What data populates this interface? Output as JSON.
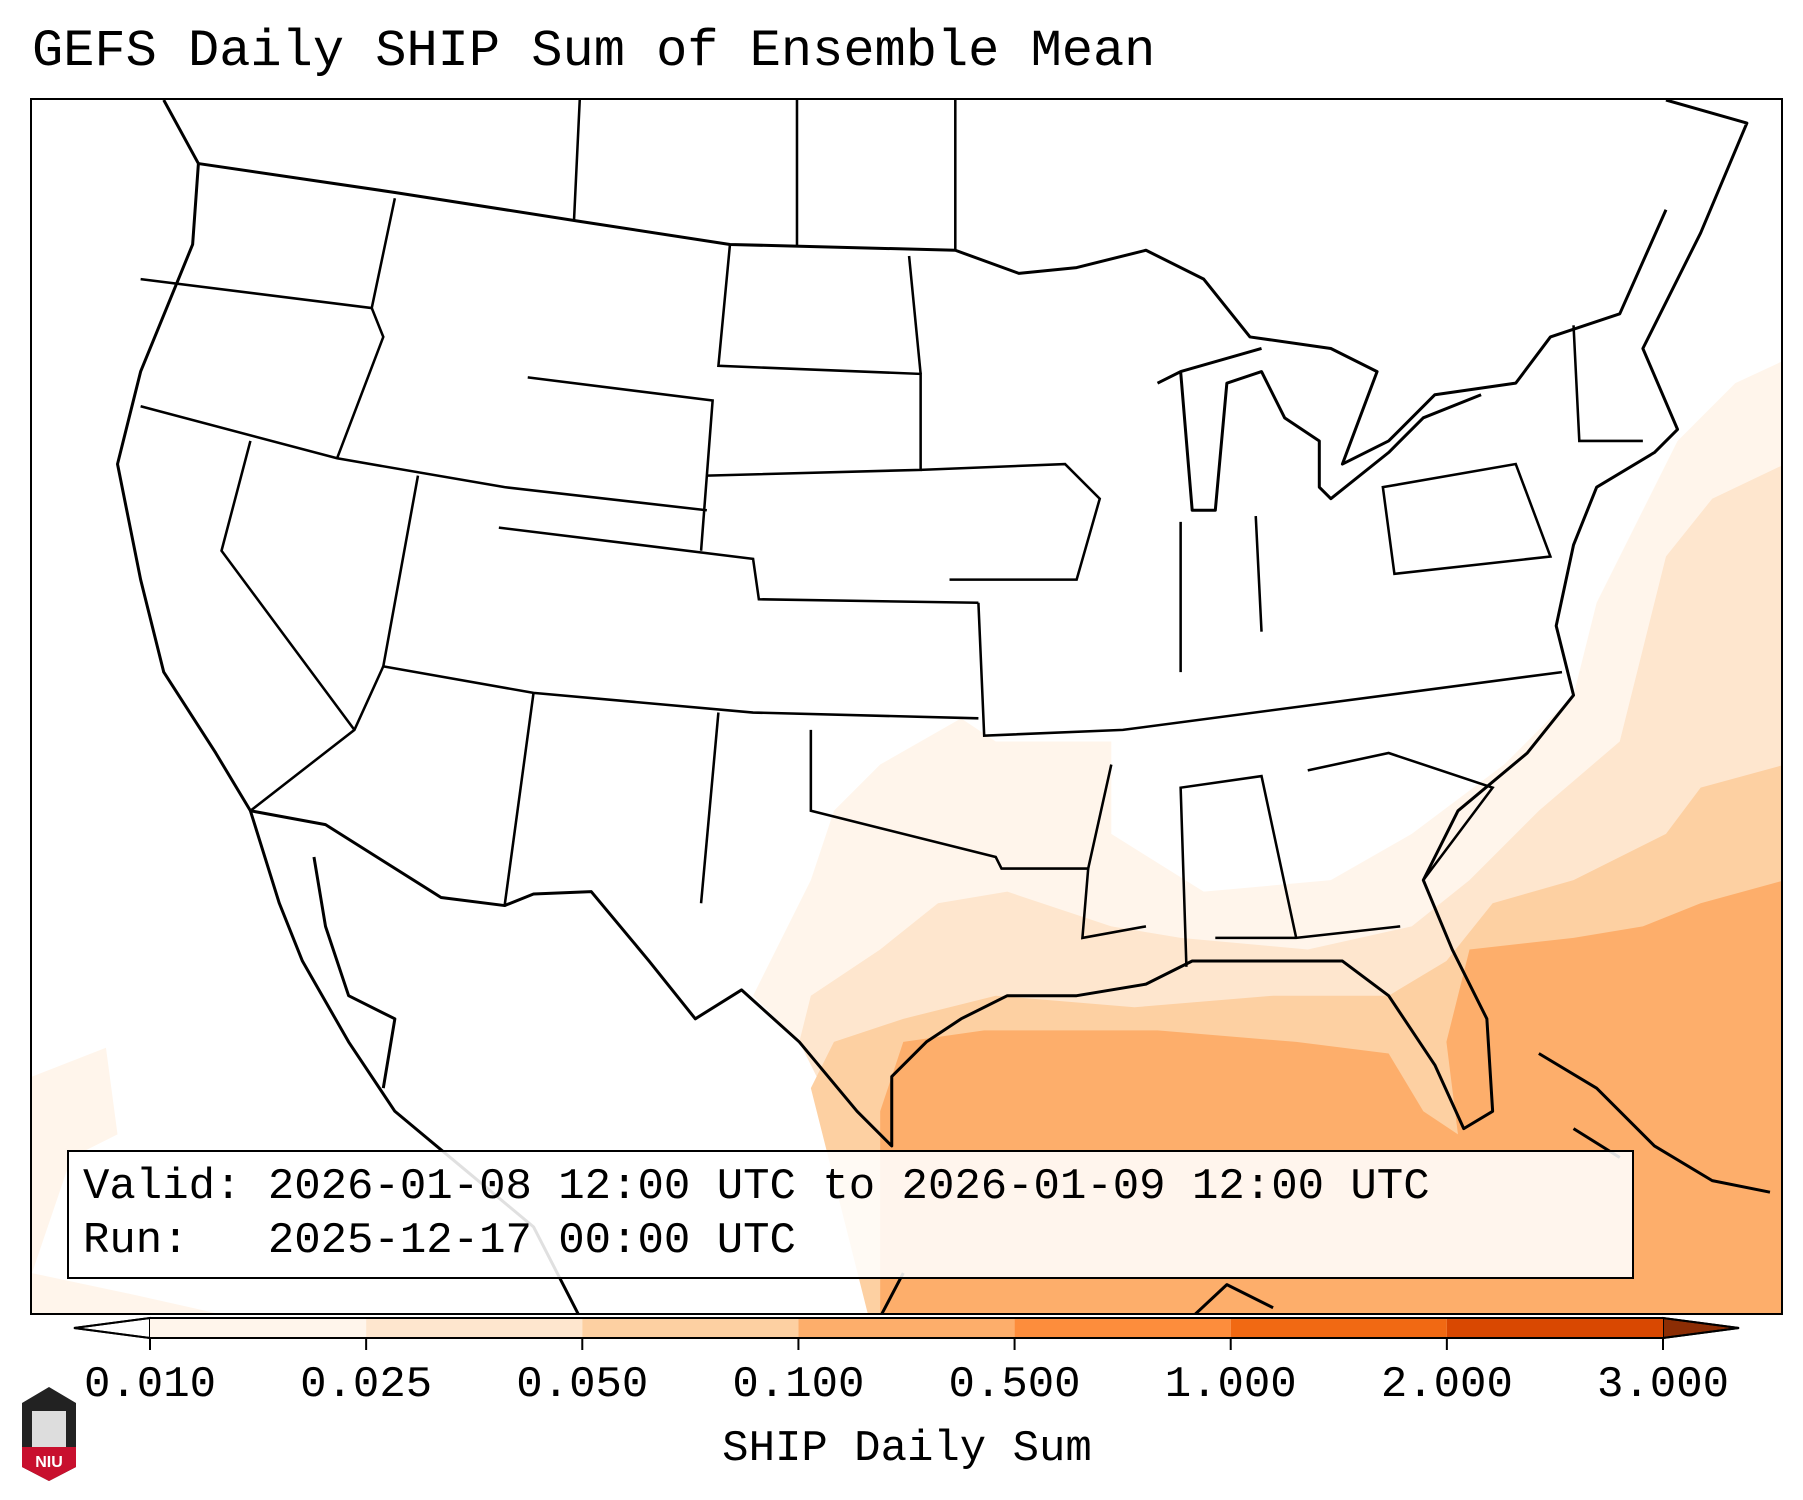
{
  "title": "GEFS Daily SHIP Sum of Ensemble Mean",
  "info": {
    "valid": "Valid: 2026-01-08 12:00 UTC to 2026-01-09 12:00 UTC",
    "run": "Run:   2025-12-17 00:00 UTC"
  },
  "logo_text": "NIU",
  "chart_data": {
    "type": "heatmap",
    "title": "GEFS Daily SHIP Sum of Ensemble Mean",
    "colorbar": {
      "label": "SHIP Daily Sum",
      "ticks": [
        "0.010",
        "0.025",
        "0.050",
        "0.100",
        "0.500",
        "1.000",
        "2.000",
        "3.000"
      ],
      "colors": [
        "#fff5eb",
        "#fee6ce",
        "#fdd0a2",
        "#fdae6b",
        "#fd8d3c",
        "#f16913",
        "#d94801"
      ],
      "under_color": "#ffffff",
      "over_color": "#8c2d04",
      "extend": "both"
    },
    "region": "Continental United States, Gulf of Mexico, western Atlantic",
    "field_summary": "Values 0.1-0.5 over central/southern Gulf of Mexico and Atlantic east of Florida; 0.01-0.1 along Gulf coast, southeastern states and western Atlantic"
  }
}
